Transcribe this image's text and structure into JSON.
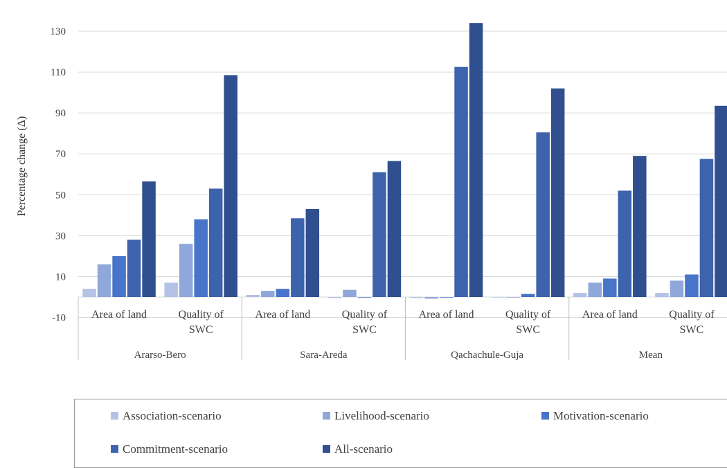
{
  "chart_data": {
    "type": "bar",
    "title": "",
    "xlabel": "",
    "ylabel": "Percentage change (Δ)",
    "ylim": [
      -10,
      140
    ],
    "yticks": [
      -10,
      10,
      30,
      50,
      70,
      90,
      110,
      130
    ],
    "grid": true,
    "legend_position": "bottom",
    "groups": [
      "Ararso-Bero",
      "Sara-Areda",
      "Qachachule-Guja",
      "Mean"
    ],
    "subcategories": [
      [
        "Area of land"
      ],
      [
        "Quality of",
        "SWC"
      ]
    ],
    "categories": [
      "Ararso-Bero | Area of land",
      "Ararso-Bero | Quality of SWC",
      "Sara-Areda | Area of land",
      "Sara-Areda | Quality of SWC",
      "Qachachule-Guja | Area of land",
      "Qachachule-Guja | Quality of SWC",
      "Mean | Area of land",
      "Mean | Quality of SWC"
    ],
    "series": [
      {
        "name": "Association-scenario",
        "color": "#b4c2e6",
        "values": [
          4,
          7,
          1,
          -0.5,
          -0.5,
          0,
          2,
          2
        ]
      },
      {
        "name": "Livelihood-scenario",
        "color": "#8fa7da",
        "values": [
          16,
          26,
          3,
          3.5,
          -0.8,
          0,
          7,
          8
        ]
      },
      {
        "name": "Motivation-scenario",
        "color": "#4874c9",
        "values": [
          20,
          38,
          4,
          0,
          0,
          1.5,
          9,
          11
        ]
      },
      {
        "name": "Commitment-scenario",
        "color": "#3d63ad",
        "values": [
          28,
          53,
          38.5,
          61,
          112.5,
          80.5,
          52,
          67.5
        ]
      },
      {
        "name": "All-scenario",
        "color": "#2f4f8f",
        "values": [
          56.5,
          108.5,
          43,
          66.5,
          134,
          102,
          69,
          93.5
        ]
      }
    ]
  }
}
